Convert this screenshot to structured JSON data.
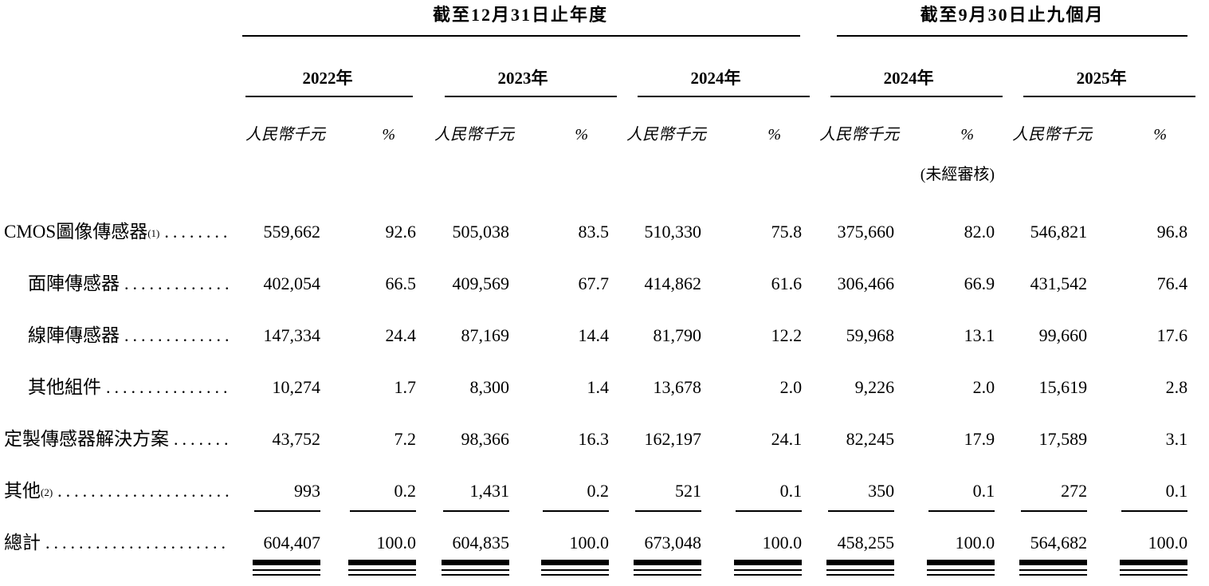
{
  "table": {
    "groups": [
      {
        "title": "截至12月31日止年度",
        "years": [
          "2022年",
          "2023年",
          "2024年"
        ]
      },
      {
        "title": "截至9月30日止九個月",
        "years": [
          "2024年",
          "2025年"
        ]
      }
    ],
    "unit_label": "人民幣千元",
    "percent_label": "%",
    "unaudited_note": "(未經審核)",
    "rows": [
      {
        "label": "CMOS圖像傳感器",
        "sup": "(1)",
        "bold": true,
        "indent": false,
        "rule": "",
        "values": [
          "559,662",
          "92.6",
          "505,038",
          "83.5",
          "510,330",
          "75.8",
          "375,660",
          "82.0",
          "546,821",
          "96.8"
        ]
      },
      {
        "label": "面陣傳感器",
        "sup": "",
        "bold": false,
        "indent": true,
        "rule": "",
        "values": [
          "402,054",
          "66.5",
          "409,569",
          "67.7",
          "414,862",
          "61.6",
          "306,466",
          "66.9",
          "431,542",
          "76.4"
        ]
      },
      {
        "label": "線陣傳感器",
        "sup": "",
        "bold": false,
        "indent": true,
        "rule": "",
        "values": [
          "147,334",
          "24.4",
          "87,169",
          "14.4",
          "81,790",
          "12.2",
          "59,968",
          "13.1",
          "99,660",
          "17.6"
        ]
      },
      {
        "label": "其他組件",
        "sup": "",
        "bold": false,
        "indent": true,
        "rule": "",
        "values": [
          "10,274",
          "1.7",
          "8,300",
          "1.4",
          "13,678",
          "2.0",
          "9,226",
          "2.0",
          "15,619",
          "2.8"
        ]
      },
      {
        "label": "定製傳感器解決方案 ",
        "sup": "",
        "bold": true,
        "indent": false,
        "rule": "",
        "values": [
          "43,752",
          "7.2",
          "98,366",
          "16.3",
          "162,197",
          "24.1",
          "82,245",
          "17.9",
          "17,589",
          "3.1"
        ]
      },
      {
        "label": "其他",
        "sup": "(2)",
        "bold": true,
        "indent": false,
        "rule": "single",
        "values": [
          "993",
          "0.2",
          "1,431",
          "0.2",
          "521",
          "0.1",
          "350",
          "0.1",
          "272",
          "0.1"
        ]
      },
      {
        "label": "總計",
        "sup": "",
        "bold": true,
        "indent": false,
        "rule": "double",
        "values": [
          "604,407",
          "100.0",
          "604,835",
          "100.0",
          "673,048",
          "100.0",
          "458,255",
          "100.0",
          "564,682",
          "100.0"
        ]
      }
    ]
  },
  "colors": {
    "text": "#000000",
    "rules": "#000000",
    "background": "#ffffff"
  }
}
